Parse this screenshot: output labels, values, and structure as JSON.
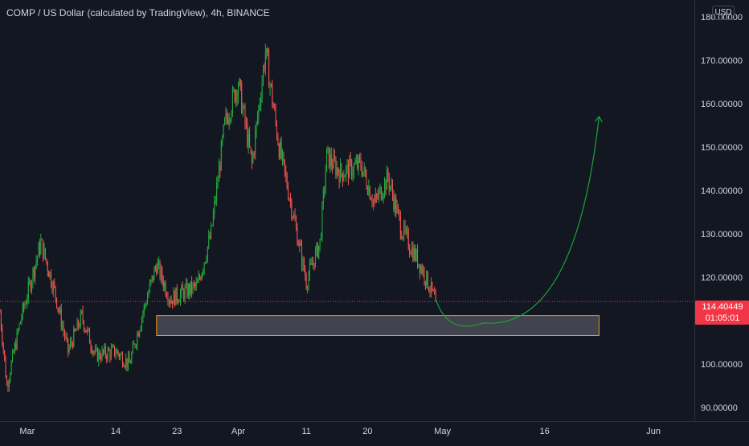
{
  "header": {
    "title": "COMP / US Dollar (calculated by TradingView), 4h, BINANCE",
    "currency": "USD"
  },
  "price_label": {
    "value": "114.40449",
    "countdown": "01:05:01"
  },
  "colors": {
    "background": "#131722",
    "up": "#26a69a",
    "up_bright": "#22ab3d",
    "down": "#ef5350",
    "price_line": "#f23645",
    "zone_fill": "#434651",
    "zone_border": "#ff9800",
    "arrow": "#1aa33a",
    "axis_text": "#d1d4dc"
  },
  "chart_data": {
    "type": "candlestick",
    "symbol": "COMP / US Dollar",
    "interval": "4h",
    "exchange": "BINANCE",
    "ylim": [
      88,
      182
    ],
    "y_ticks": [
      "180.00000",
      "170.00000",
      "160.00000",
      "150.00000",
      "140.00000",
      "130.00000",
      "120.00000",
      "110.00000",
      "100.00000",
      "90.00000"
    ],
    "y_tick_values": [
      180,
      170,
      160,
      150,
      140,
      130,
      120,
      110,
      100,
      90
    ],
    "x_ticks": [
      "Mar",
      "14",
      "23",
      "Apr",
      "11",
      "20",
      "May",
      "16",
      "Jun"
    ],
    "x_tick_dates": [
      "2022-03-01",
      "2022-03-14",
      "2022-03-23",
      "2022-04-01",
      "2022-04-11",
      "2022-04-20",
      "2022-05-01",
      "2022-05-16",
      "2022-06-01"
    ],
    "x_range": [
      "2022-02-25",
      "2022-06-07"
    ],
    "last_price": 114.40449,
    "close_path": [
      [
        "2022-02-25",
        112
      ],
      [
        "2022-02-26",
        95
      ],
      [
        "2022-02-28",
        110
      ],
      [
        "2022-03-03",
        128
      ],
      [
        "2022-03-05",
        117
      ],
      [
        "2022-03-07",
        103
      ],
      [
        "2022-03-09",
        111
      ],
      [
        "2022-03-11",
        102
      ],
      [
        "2022-03-14",
        103
      ],
      [
        "2022-03-16",
        100
      ],
      [
        "2022-03-18",
        112
      ],
      [
        "2022-03-20",
        123
      ],
      [
        "2022-03-22",
        115
      ],
      [
        "2022-03-26",
        118
      ],
      [
        "2022-03-28",
        130
      ],
      [
        "2022-03-30",
        155
      ],
      [
        "2022-04-01",
        165
      ],
      [
        "2022-04-03",
        146
      ],
      [
        "2022-04-05",
        172
      ],
      [
        "2022-04-07",
        150
      ],
      [
        "2022-04-09",
        135
      ],
      [
        "2022-04-11",
        119
      ],
      [
        "2022-04-13",
        128
      ],
      [
        "2022-04-14",
        148
      ],
      [
        "2022-04-16",
        144
      ],
      [
        "2022-04-19",
        146
      ],
      [
        "2022-04-21",
        137
      ],
      [
        "2022-04-23",
        143
      ],
      [
        "2022-04-25",
        131
      ],
      [
        "2022-04-27",
        125
      ],
      [
        "2022-04-28",
        122
      ],
      [
        "2022-04-30",
        114.4
      ]
    ],
    "annotations": {
      "support_zone": {
        "start": "2022-03-20",
        "end": "2022-05-24",
        "low": 106.6,
        "high": 111.2
      },
      "projection_curve": {
        "points": [
          [
            "2022-04-30",
            115
          ],
          [
            "2022-05-07",
            109.5
          ],
          [
            "2022-05-24",
            157
          ]
        ]
      }
    }
  }
}
